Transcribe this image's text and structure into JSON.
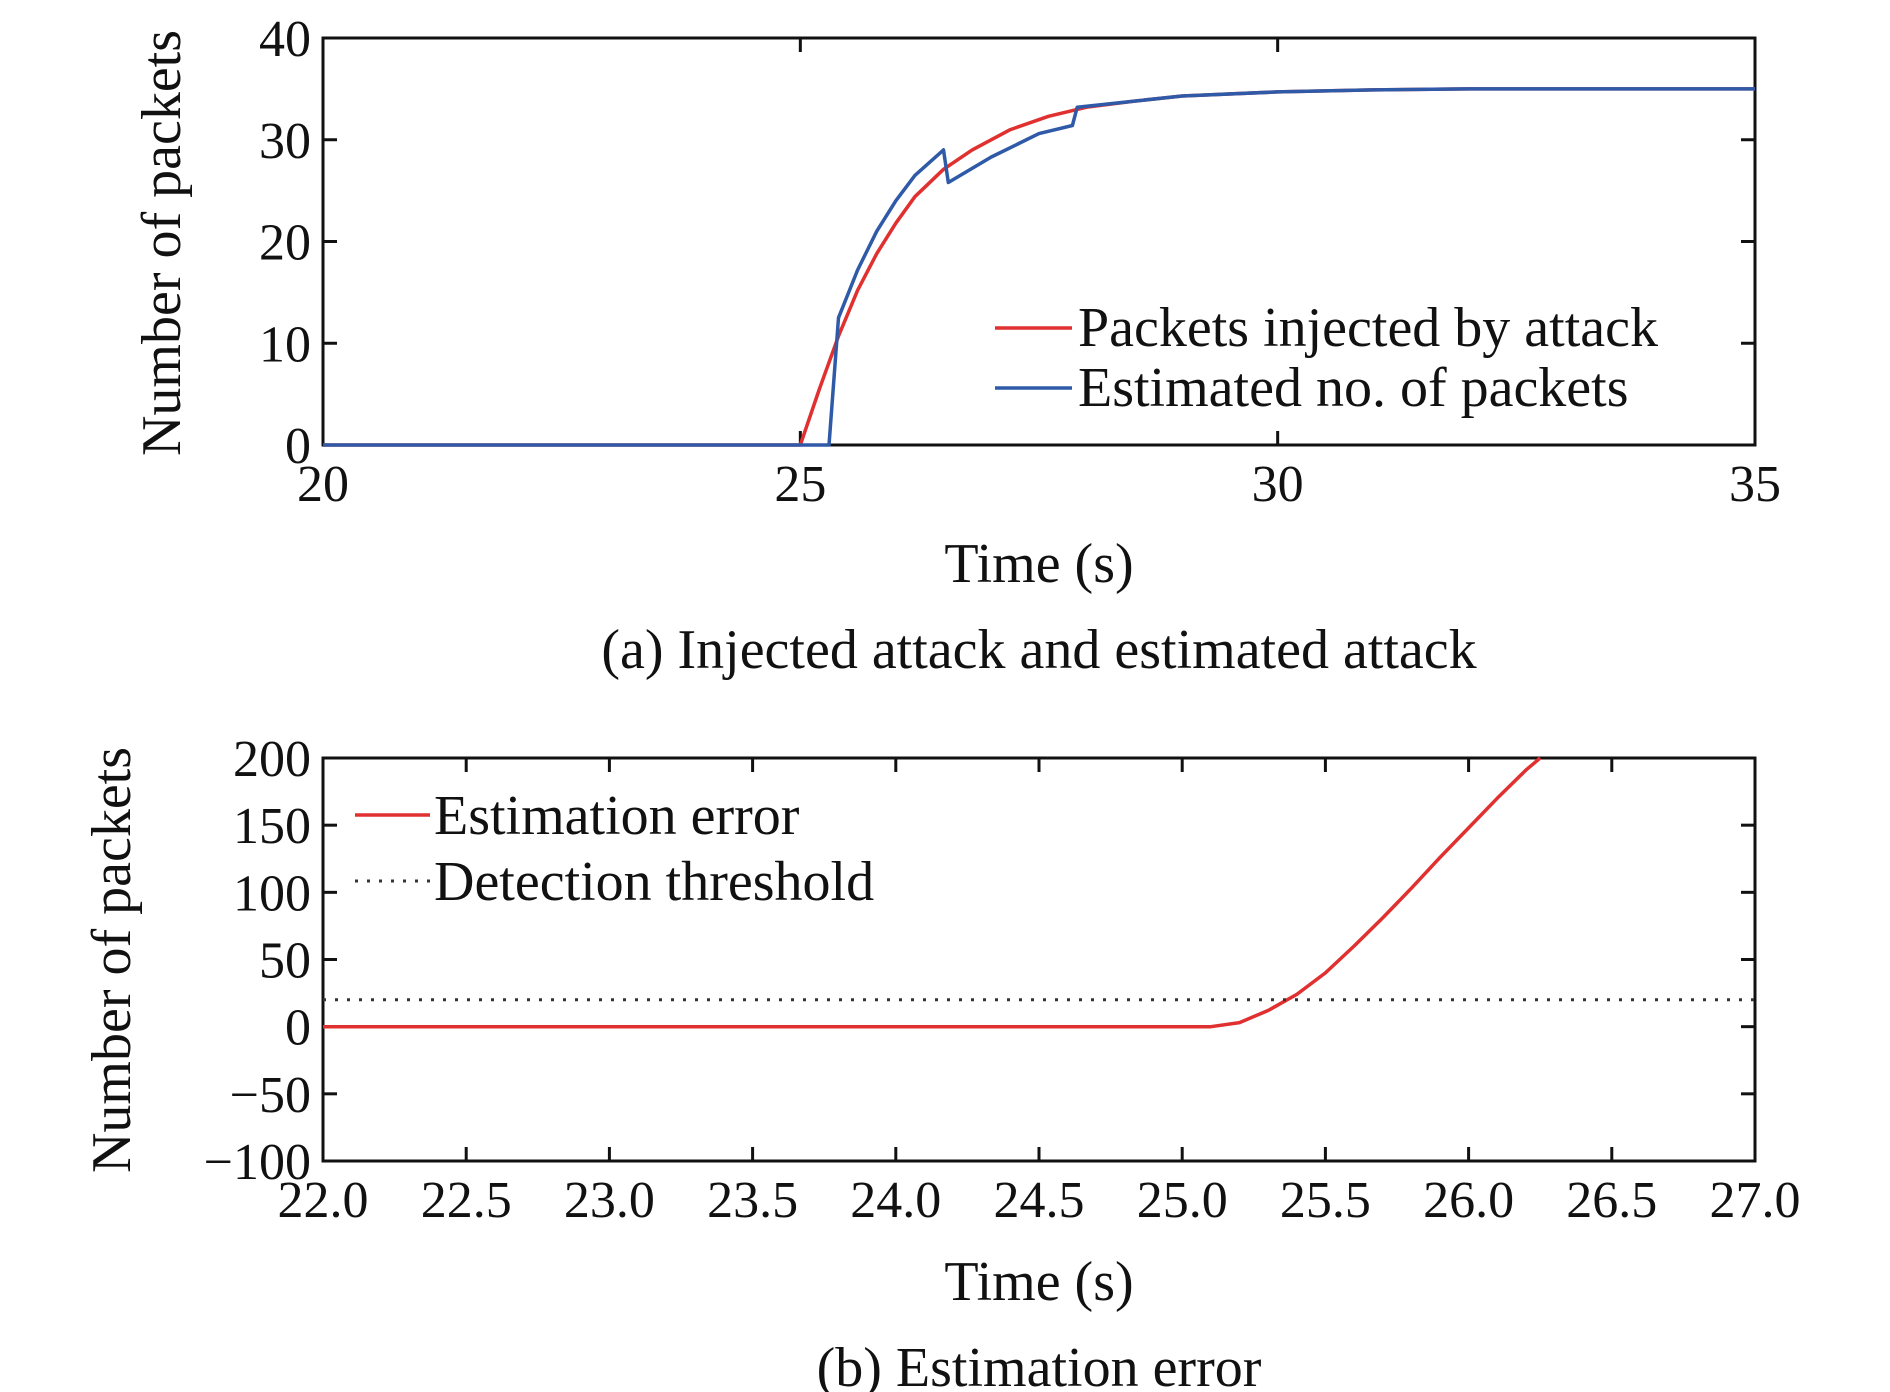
{
  "chart_data": [
    {
      "type": "line",
      "caption": "(a) Injected attack and estimated attack",
      "xlabel": "Time (s)",
      "ylabel": "Number of packets",
      "xlim": [
        20,
        35
      ],
      "ylim": [
        0,
        40
      ],
      "xticks": [
        "20",
        "25",
        "30",
        "35"
      ],
      "yticks": [
        "0",
        "10",
        "20",
        "30",
        "40"
      ],
      "grid": false,
      "legend_position": "right",
      "series": [
        {
          "name": "Packets injected by attack",
          "color": "#e03030",
          "style": "solid",
          "x": [
            20,
            25,
            25.2,
            25.4,
            25.6,
            25.8,
            26.0,
            26.2,
            26.5,
            26.8,
            27.2,
            27.6,
            28.0,
            28.5,
            29.0,
            30.0,
            31.0,
            32.0,
            33.0,
            35.0
          ],
          "y": [
            0,
            0,
            5.5,
            10.7,
            15.2,
            18.8,
            21.8,
            24.4,
            27.1,
            29.0,
            31.0,
            32.3,
            33.2,
            33.8,
            34.3,
            34.7,
            34.9,
            35.0,
            35.0,
            35.0
          ]
        },
        {
          "name": "Estimated no. of packets",
          "color": "#2f5aa8",
          "style": "solid",
          "x": [
            20,
            25.3,
            25.4,
            25.6,
            25.8,
            26.0,
            26.2,
            26.5,
            26.55,
            27.0,
            27.5,
            27.85,
            27.9,
            28.5,
            29.0,
            30.0,
            31.0,
            32.0,
            33.0,
            35.0
          ],
          "y": [
            0,
            0,
            12.5,
            17.2,
            21.0,
            24.0,
            26.5,
            29.0,
            25.8,
            28.3,
            30.6,
            31.4,
            33.2,
            33.8,
            34.3,
            34.7,
            34.9,
            35.0,
            35.0,
            35.0
          ]
        }
      ]
    },
    {
      "type": "line",
      "caption": "(b) Estimation error",
      "xlabel": "Time (s)",
      "ylabel": "Number of packets",
      "xlim": [
        22.0,
        27.0
      ],
      "ylim": [
        -100,
        200
      ],
      "xticks": [
        "22.0",
        "22.5",
        "23.0",
        "23.5",
        "24.0",
        "24.5",
        "25.0",
        "25.5",
        "26.0",
        "26.5",
        "27.0"
      ],
      "yticks": [
        "−100",
        "−50",
        "0",
        "50",
        "100",
        "150",
        "200"
      ],
      "grid": false,
      "legend_position": "top-left",
      "series": [
        {
          "name": "Estimation error",
          "color": "#e03030",
          "style": "solid",
          "x": [
            22.0,
            25.1,
            25.2,
            25.3,
            25.4,
            25.5,
            25.6,
            25.7,
            25.8,
            25.9,
            26.0,
            26.1,
            26.2,
            26.25
          ],
          "y": [
            0,
            0,
            3,
            12,
            24,
            40,
            60,
            81,
            103,
            126,
            148,
            170,
            191,
            200
          ]
        },
        {
          "name": "Detection threshold",
          "color": "#333333",
          "style": "dotted",
          "x": [
            22.0,
            27.0
          ],
          "y": [
            20,
            20
          ]
        }
      ]
    }
  ]
}
